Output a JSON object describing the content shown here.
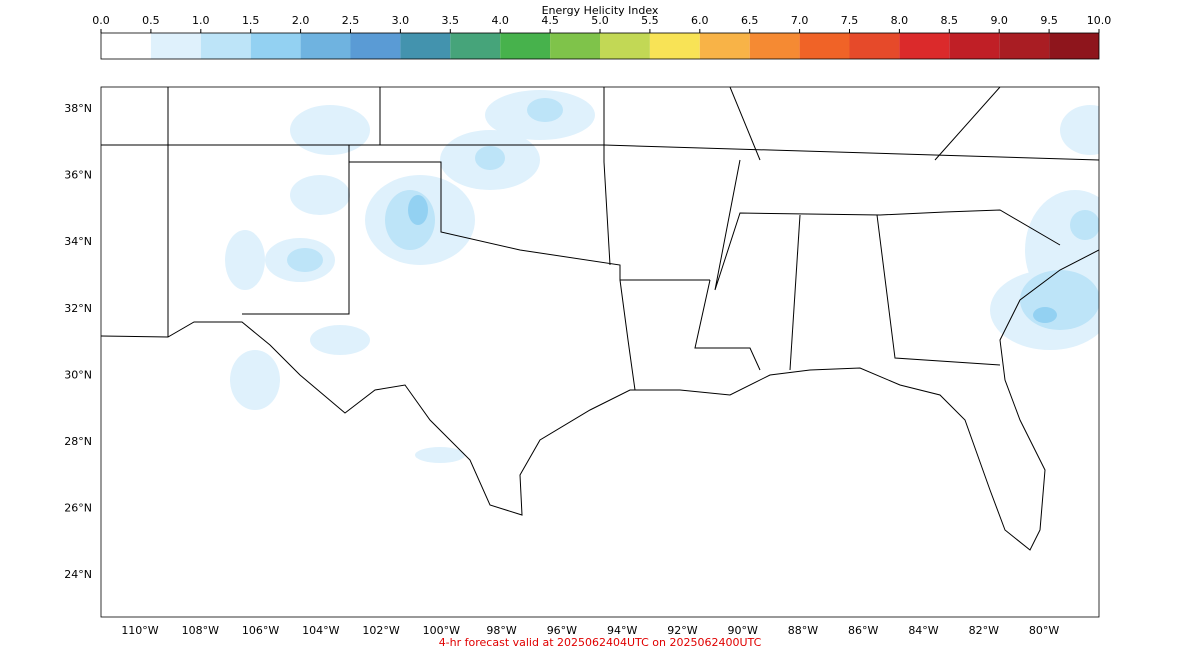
{
  "colorbar": {
    "title": "Energy Helicity Index",
    "ticks": [
      {
        "value": 0,
        "label": "0.0"
      },
      {
        "value": 0.5,
        "label": "0.5"
      },
      {
        "value": 1,
        "label": "1.0"
      },
      {
        "value": 1.5,
        "label": "1.5"
      },
      {
        "value": 2,
        "label": "2.0"
      },
      {
        "value": 2.5,
        "label": "2.5"
      },
      {
        "value": 3,
        "label": "3.0"
      },
      {
        "value": 3.5,
        "label": "3.5"
      },
      {
        "value": 4,
        "label": "4.0"
      },
      {
        "value": 4.5,
        "label": "4.5"
      },
      {
        "value": 5,
        "label": "5.0"
      },
      {
        "value": 5.5,
        "label": "5.5"
      },
      {
        "value": 6,
        "label": "6.0"
      },
      {
        "value": 6.5,
        "label": "6.5"
      },
      {
        "value": 7,
        "label": "7.0"
      },
      {
        "value": 7.5,
        "label": "7.5"
      },
      {
        "value": 8,
        "label": "8.0"
      },
      {
        "value": 8.5,
        "label": "8.5"
      },
      {
        "value": 9,
        "label": "9.0"
      },
      {
        "value": 9.5,
        "label": "9.5"
      },
      {
        "value": 10,
        "label": "10.0"
      }
    ],
    "colors": [
      "#ffffff",
      "#dff1fc",
      "#bde4f8",
      "#93d1f2",
      "#6fb3e0",
      "#5a9bd5",
      "#4393ae",
      "#46a47a",
      "#47b24c",
      "#7fc34a",
      "#c2d855",
      "#f8e356",
      "#f8b347",
      "#f58a33",
      "#f06327",
      "#e64a2a",
      "#db2a2b",
      "#c01f26",
      "#a91d23",
      "#8e151c"
    ]
  },
  "map": {
    "lat_labels": [
      "38°N",
      "36°N",
      "34°N",
      "32°N",
      "30°N",
      "28°N",
      "26°N",
      "24°N"
    ],
    "lon_labels": [
      "110°W",
      "108°W",
      "106°W",
      "104°W",
      "102°W",
      "100°W",
      "98°W",
      "96°W",
      "94°W",
      "92°W",
      "90°W",
      "88°W",
      "86°W",
      "84°W",
      "82°W",
      "80°W"
    ]
  },
  "footer": "4-hr forecast valid at 2025062404UTC on 2025062400UTC"
}
